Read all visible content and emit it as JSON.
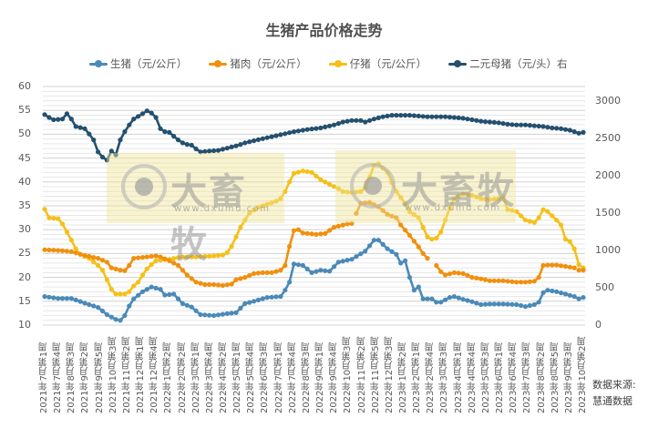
{
  "chart_data": {
    "type": "line",
    "title": "生猪产品价格走势",
    "xlabel": "",
    "ylabel_left": "元/公斤",
    "ylabel_right": "元/头",
    "ylim_left": [
      10,
      60
    ],
    "ylim_right": [
      0,
      3000
    ],
    "yticks_left": [
      10,
      15,
      20,
      25,
      30,
      35,
      40,
      45,
      50,
      55,
      60
    ],
    "yticks_right": [
      0,
      500,
      1000,
      1500,
      2000,
      2500,
      3000
    ],
    "grid": true,
    "legend_position": "top",
    "x_tick_labels": [
      "2021年7月第1周",
      "2021年7月第4周",
      "2021年8月第3周",
      "2021年9月第2周",
      "2021年9月第5周",
      "2021年10月第3周",
      "2021年11月第2周",
      "2021年12月第1周",
      "2021年12月第4周",
      "2022年1月第2周",
      "2022年2月第2周",
      "2022年3月第1周",
      "2022年3月第4周",
      "2022年4月第2周",
      "2022年5月第1周",
      "2022年5月第4周",
      "2022年6月第3周",
      "2022年7月第1周",
      "2022年7月第4周",
      "2022年8月第3周",
      "2022年9月第1周",
      "2022年9月第4周",
      "2022年10月第3周",
      "2022年11月第2周",
      "2022年11月第5周",
      "2022年12月第3周",
      "2023年1月第2周",
      "2023年2月第1周",
      "2023年2月第4周",
      "2023年3月第3周",
      "2023年4月第1周",
      "2023年4月第4周",
      "2023年5月第3周",
      "2023年6月第1周",
      "2023年6月第4周",
      "2023年7月第3周",
      "2023年8月第2周",
      "2023年8月第5周",
      "2023年9月第3周",
      "2023年10月第2周"
    ],
    "num_points": 118,
    "series": [
      {
        "name": "生猪（元/公斤）",
        "axis": "left",
        "color": "#4a8ab8",
        "keypoints": [
          [
            0,
            16
          ],
          [
            3,
            15.6
          ],
          [
            6,
            15.6
          ],
          [
            9,
            14.6
          ],
          [
            12,
            13.7
          ],
          [
            14,
            12.2
          ],
          [
            16,
            11.2
          ],
          [
            17,
            11
          ],
          [
            18,
            12
          ],
          [
            19,
            14
          ],
          [
            20,
            15.5
          ],
          [
            22,
            17
          ],
          [
            24,
            18
          ],
          [
            26,
            17.5
          ],
          [
            27,
            16.3
          ],
          [
            29,
            16.5
          ],
          [
            31,
            14.5
          ],
          [
            33,
            13.8
          ],
          [
            35,
            12.2
          ],
          [
            38,
            12
          ],
          [
            41,
            12.4
          ],
          [
            43,
            12.6
          ],
          [
            45,
            14.5
          ],
          [
            47,
            15
          ],
          [
            50,
            15.8
          ],
          [
            53,
            16
          ],
          [
            54,
            17.3
          ],
          [
            55,
            19
          ],
          [
            56,
            22.8
          ],
          [
            58,
            22.5
          ],
          [
            60,
            21
          ],
          [
            62,
            21.5
          ],
          [
            64,
            21.3
          ],
          [
            66,
            23.2
          ],
          [
            69,
            23.8
          ],
          [
            72,
            25.5
          ],
          [
            74,
            27.8
          ],
          [
            75,
            27.8
          ],
          [
            77,
            26
          ],
          [
            79,
            24.8
          ],
          [
            80,
            23
          ],
          [
            81,
            23.5
          ],
          [
            82,
            20
          ],
          [
            83,
            17.3
          ],
          [
            84,
            18
          ],
          [
            85,
            15.5
          ],
          [
            87,
            15.5
          ],
          [
            88,
            14.8
          ],
          [
            89,
            14.8
          ],
          [
            91,
            15.8
          ],
          [
            92,
            16
          ],
          [
            94,
            15.4
          ],
          [
            96,
            14.9
          ],
          [
            98,
            14.3
          ],
          [
            100,
            14.4
          ],
          [
            103,
            14.4
          ],
          [
            106,
            14.3
          ],
          [
            108,
            13.9
          ],
          [
            110,
            14.3
          ],
          [
            111,
            14.8
          ],
          [
            112,
            16.8
          ],
          [
            113,
            17.3
          ],
          [
            115,
            17
          ],
          [
            117,
            16.5
          ],
          [
            119,
            16
          ],
          [
            120,
            15.5
          ],
          [
            121,
            15.8
          ]
        ]
      },
      {
        "name": "猪肉（元/公斤）",
        "axis": "left",
        "color": "#f0900e",
        "keypoints": [
          [
            0,
            25.8
          ],
          [
            4,
            25.6
          ],
          [
            6,
            25.4
          ],
          [
            9,
            24.6
          ],
          [
            12,
            24
          ],
          [
            14,
            23.2
          ],
          [
            15,
            22
          ],
          [
            17,
            21.5
          ],
          [
            18,
            21.4
          ],
          [
            19,
            22.5
          ],
          [
            20,
            24
          ],
          [
            23,
            24.3
          ],
          [
            25,
            24.5
          ],
          [
            26,
            24.3
          ],
          [
            28,
            23.5
          ],
          [
            30,
            22.5
          ],
          [
            32,
            20.5
          ],
          [
            34,
            19
          ],
          [
            36,
            18.5
          ],
          [
            38,
            18.5
          ],
          [
            40,
            18.3
          ],
          [
            42,
            18.6
          ],
          [
            43,
            19.5
          ],
          [
            45,
            20
          ],
          [
            47,
            20.8
          ],
          [
            49,
            21
          ],
          [
            51,
            21
          ],
          [
            53,
            21.5
          ],
          [
            54,
            22.5
          ],
          [
            55,
            26.5
          ],
          [
            56,
            29.8
          ],
          [
            57,
            30
          ],
          [
            58,
            29.3
          ],
          [
            61,
            29
          ],
          [
            63,
            29.2
          ],
          [
            65,
            30.5
          ],
          [
            68,
            31.2
          ],
          [
            69,
            31.3
          ],
          null,
          [
            70,
            33.4
          ],
          [
            71,
            35.5
          ],
          [
            73,
            35.7
          ],
          [
            75,
            34.8
          ],
          [
            77,
            33.2
          ],
          [
            79,
            32.5
          ],
          [
            80,
            31
          ],
          [
            82,
            28.8
          ],
          [
            84,
            26.4
          ],
          [
            85,
            25
          ],
          [
            86,
            24
          ],
          null,
          [
            88,
            22.5
          ],
          [
            89,
            21.2
          ],
          [
            90,
            20.5
          ],
          [
            92,
            21
          ],
          [
            94,
            20.8
          ],
          [
            96,
            20
          ],
          [
            98,
            19.7
          ],
          [
            100,
            19.3
          ],
          [
            103,
            19.3
          ],
          [
            106,
            19
          ],
          [
            108,
            19
          ],
          [
            110,
            19.2
          ],
          [
            111,
            20
          ],
          [
            112,
            22.5
          ],
          [
            113,
            22.6
          ],
          [
            115,
            22.6
          ],
          [
            117,
            22.3
          ],
          [
            119,
            22
          ],
          null,
          [
            120,
            21.5
          ],
          [
            121,
            21.5
          ]
        ]
      },
      {
        "name": "仔猪（元/公斤）",
        "axis": "left",
        "color": "#f5c018",
        "keypoints": [
          [
            0,
            34.3
          ],
          [
            1,
            32.5
          ],
          [
            3,
            32.3
          ],
          [
            4,
            31.2
          ],
          [
            5,
            29.5
          ],
          [
            6,
            27.8
          ],
          [
            7,
            26
          ],
          [
            8,
            24.8
          ],
          [
            10,
            24
          ],
          [
            12,
            22.5
          ],
          [
            13,
            21.5
          ],
          [
            14,
            19.5
          ],
          [
            15,
            17.5
          ],
          [
            16,
            16.5
          ],
          [
            18,
            16.5
          ],
          [
            19,
            17
          ],
          [
            20,
            18.2
          ],
          [
            21,
            19
          ],
          [
            22,
            20.5
          ],
          [
            23,
            21.8
          ],
          [
            24,
            22.7
          ],
          [
            25,
            23.5
          ],
          [
            28,
            23.8
          ],
          [
            31,
            24.3
          ],
          [
            34,
            24.3
          ],
          [
            38,
            24.5
          ],
          [
            40,
            24.7
          ],
          [
            41,
            25.2
          ],
          [
            42,
            26.5
          ],
          [
            43,
            28.5
          ],
          [
            44,
            30.5
          ],
          [
            46,
            33.5
          ],
          [
            48,
            34.7
          ],
          [
            50,
            35.3
          ],
          [
            52,
            36
          ],
          [
            53,
            36.5
          ],
          [
            54,
            38
          ],
          [
            55,
            40
          ],
          [
            56,
            41.8
          ],
          [
            58,
            42.3
          ],
          [
            60,
            42
          ],
          [
            62,
            40.5
          ],
          [
            64,
            39.5
          ],
          [
            66,
            38.6
          ],
          [
            67,
            38
          ],
          [
            69,
            37.8
          ],
          [
            71,
            38
          ],
          [
            72,
            38.8
          ],
          [
            73,
            41
          ],
          [
            74,
            43.5
          ],
          [
            75,
            43.8
          ],
          [
            77,
            42
          ],
          [
            78,
            39.8
          ],
          [
            79,
            38
          ],
          [
            81,
            35.5
          ],
          [
            82,
            33.8
          ],
          [
            84,
            32.5
          ],
          [
            85,
            30.5
          ],
          [
            86,
            28.5
          ],
          [
            87,
            28
          ],
          [
            88,
            28.2
          ],
          [
            89,
            29.5
          ],
          [
            90,
            32
          ],
          [
            91,
            34.5
          ],
          [
            92,
            36.5
          ],
          [
            94,
            37.5
          ],
          [
            96,
            37.2
          ],
          [
            98,
            36.5
          ],
          [
            100,
            36.3
          ],
          [
            102,
            36.5
          ],
          [
            103,
            36.8
          ],
          [
            104,
            34.2
          ],
          [
            106,
            33.8
          ],
          [
            108,
            32
          ],
          [
            110,
            31.5
          ],
          [
            111,
            32.5
          ],
          [
            112,
            34.2
          ],
          [
            113,
            33.8
          ],
          [
            115,
            32
          ],
          [
            116,
            31
          ],
          [
            117,
            28
          ],
          [
            118,
            27.5
          ],
          [
            119,
            26
          ],
          [
            120,
            22.7
          ],
          [
            121,
            22
          ]
        ]
      },
      {
        "name": "二元母猪（元/头）右",
        "axis": "right",
        "color": "#24506e",
        "keypoints": [
          [
            0,
            2820
          ],
          [
            1,
            2780
          ],
          [
            2,
            2750
          ],
          [
            4,
            2760
          ],
          [
            5,
            2830
          ],
          [
            6,
            2760
          ],
          [
            7,
            2660
          ],
          [
            9,
            2630
          ],
          [
            10,
            2560
          ],
          [
            11,
            2480
          ],
          [
            12,
            2320
          ],
          [
            13,
            2250
          ],
          [
            14,
            2210
          ],
          [
            15,
            2330
          ],
          [
            16,
            2280
          ],
          [
            17,
            2480
          ],
          [
            18,
            2590
          ],
          [
            19,
            2680
          ],
          [
            20,
            2760
          ],
          [
            22,
            2830
          ],
          [
            23,
            2870
          ],
          [
            24,
            2840
          ],
          [
            25,
            2780
          ],
          [
            26,
            2630
          ],
          [
            27,
            2590
          ],
          [
            28,
            2580
          ],
          [
            29,
            2530
          ],
          [
            30,
            2480
          ],
          [
            31,
            2440
          ],
          [
            32,
            2420
          ],
          [
            33,
            2410
          ],
          [
            34,
            2360
          ],
          [
            35,
            2320
          ],
          [
            37,
            2330
          ],
          [
            39,
            2340
          ],
          [
            41,
            2370
          ],
          [
            43,
            2400
          ],
          [
            45,
            2440
          ],
          [
            47,
            2470
          ],
          [
            50,
            2510
          ],
          [
            53,
            2550
          ],
          [
            56,
            2590
          ],
          [
            59,
            2620
          ],
          [
            62,
            2640
          ],
          [
            65,
            2680
          ],
          [
            67,
            2720
          ],
          [
            69,
            2740
          ],
          [
            71,
            2740
          ],
          [
            72,
            2720
          ],
          [
            74,
            2760
          ],
          [
            76,
            2790
          ],
          [
            78,
            2810
          ],
          [
            80,
            2810
          ],
          [
            82,
            2810
          ],
          [
            84,
            2800
          ],
          [
            86,
            2790
          ],
          [
            88,
            2790
          ],
          [
            90,
            2790
          ],
          [
            92,
            2780
          ],
          [
            94,
            2770
          ],
          [
            96,
            2750
          ],
          [
            98,
            2730
          ],
          [
            100,
            2720
          ],
          [
            102,
            2710
          ],
          [
            104,
            2690
          ],
          [
            106,
            2680
          ],
          [
            108,
            2680
          ],
          [
            110,
            2670
          ],
          [
            112,
            2660
          ],
          [
            114,
            2640
          ],
          [
            116,
            2630
          ],
          [
            118,
            2610
          ],
          [
            120,
            2570
          ],
          [
            121,
            2580
          ]
        ]
      }
    ]
  },
  "chart": {
    "title": "生猪产品价格走势",
    "legend": [
      {
        "label": "生猪（元/公斤）",
        "color": "#4a8ab8"
      },
      {
        "label": "猪肉（元/公斤）",
        "color": "#f0900e"
      },
      {
        "label": "仔猪（元/公斤）",
        "color": "#f5c018"
      },
      {
        "label": "二元母猪（元/头）右",
        "color": "#24506e"
      }
    ],
    "watermark": {
      "brand": "大畜牧",
      "url": "www.dxumu.com"
    },
    "source_line1": "数据来源:",
    "source_line2": "慧通数据"
  }
}
